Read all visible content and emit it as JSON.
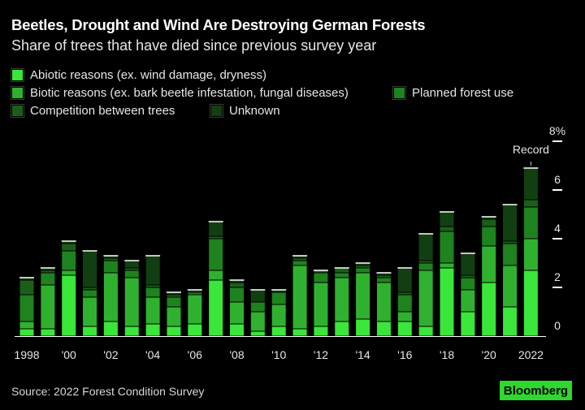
{
  "title": "Beetles, Drought and Wind Are Destroying German Forests",
  "subtitle": "Share of trees that have died since previous survey year",
  "source": "Source: 2022 Forest Condition Survey",
  "logo": "Bloomberg",
  "colors": {
    "background": "#000000",
    "abiotic": "#39e639",
    "biotic": "#2fb12f",
    "planned": "#1e821e",
    "competition": "#1a5e1a",
    "unknown": "#123f12"
  },
  "chart_data": {
    "type": "bar",
    "stacked": true,
    "categories": [
      "1998",
      "1999",
      "2000",
      "2001",
      "2002",
      "2003",
      "2004",
      "2005",
      "2006",
      "2007",
      "2008",
      "2009",
      "2010",
      "2011",
      "2012",
      "2013",
      "2014",
      "2015",
      "2016",
      "2017",
      "2018",
      "2019",
      "2020",
      "2021",
      "2022"
    ],
    "x_tick_labels": [
      "1998",
      "",
      "'00",
      "",
      "'02",
      "",
      "'04",
      "",
      "'06",
      "",
      "'08",
      "",
      "'10",
      "",
      "'12",
      "",
      "'14",
      "",
      "'16",
      "",
      "'18",
      "",
      "'20",
      "",
      "2022"
    ],
    "series": [
      {
        "name": "Abiotic reasons (ex. wind damage, dryness)",
        "color": "#39e639",
        "values": [
          0.3,
          0.3,
          2.5,
          0.4,
          0.6,
          0.4,
          0.5,
          0.4,
          0.5,
          2.3,
          0.5,
          0.2,
          0.4,
          0.3,
          0.4,
          0.6,
          0.7,
          0.6,
          0.6,
          0.4,
          2.8,
          1.0,
          2.2,
          1.2,
          2.7
        ]
      },
      {
        "name": "Biotic reasons (ex. bark beetle infestation, fungal diseases)",
        "color": "#2fb12f",
        "values": [
          0.3,
          1.8,
          0.2,
          1.2,
          2.0,
          2.0,
          1.1,
          0.8,
          1.2,
          0.4,
          0.9,
          0.8,
          0.9,
          2.6,
          1.8,
          1.8,
          1.9,
          1.6,
          0.4,
          2.3,
          0.2,
          0.9,
          1.5,
          1.7,
          1.3
        ]
      },
      {
        "name": "Planned forest use",
        "color": "#1e821e",
        "values": [
          1.1,
          0.5,
          0.8,
          0.3,
          0.5,
          0.3,
          0.4,
          0.4,
          0.1,
          1.3,
          0.6,
          0.4,
          0.5,
          0.2,
          0.4,
          0.2,
          0.2,
          0.2,
          0.7,
          0.3,
          1.3,
          0.5,
          0.8,
          0.9,
          1.3
        ]
      },
      {
        "name": "Competition between trees",
        "color": "#1a5e1a",
        "values": [
          0.6,
          0.1,
          0.3,
          0.1,
          0.1,
          0.1,
          0.1,
          0.1,
          0.0,
          0.1,
          0.2,
          0.0,
          0.0,
          0.1,
          0.1,
          0.2,
          0.1,
          0.1,
          0.1,
          0.1,
          0.2,
          0.1,
          0.3,
          0.1,
          0.3
        ]
      },
      {
        "name": "Unknown",
        "color": "#123f12",
        "values": [
          0.1,
          0.1,
          0.1,
          1.5,
          0.1,
          0.3,
          1.2,
          0.1,
          0.1,
          0.6,
          0.1,
          0.5,
          0.1,
          0.1,
          0.0,
          0.0,
          0.1,
          0.1,
          1.0,
          1.1,
          0.6,
          0.9,
          0.1,
          1.5,
          1.3
        ]
      }
    ],
    "ylim": [
      0,
      8
    ],
    "yticks": [
      0,
      2,
      4,
      6,
      8
    ],
    "ytick_labels": [
      "0",
      "2",
      "4",
      "6",
      "8%"
    ],
    "y_axis_side": "right",
    "grid": false,
    "annotation": {
      "text": "Record",
      "category": "2022"
    },
    "legend_position": "top-left"
  }
}
